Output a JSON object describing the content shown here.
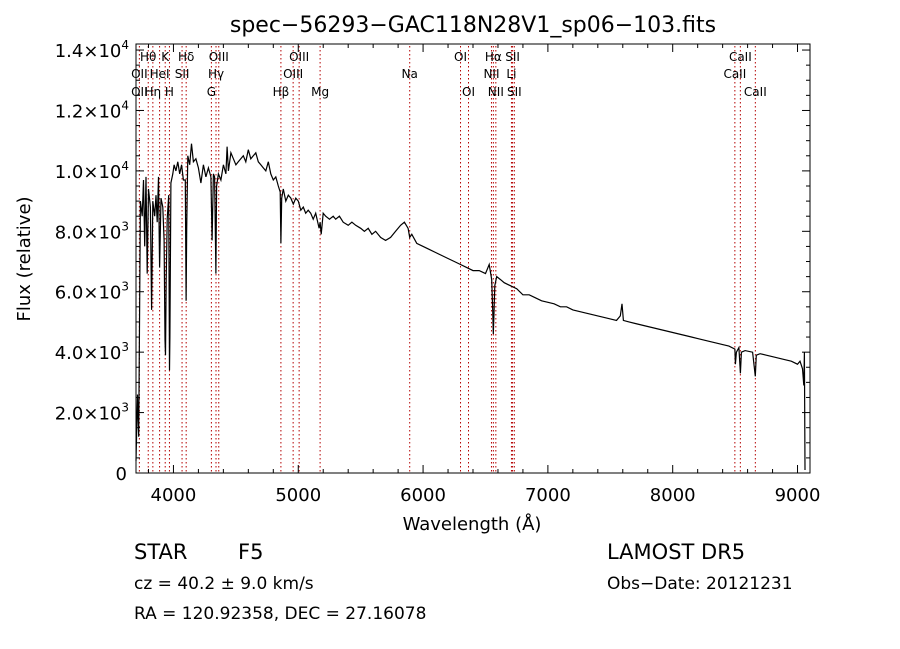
{
  "chart_data": {
    "type": "line",
    "title": "spec−56293−GAC118N28V1_sp06−103.fits",
    "xlabel": "Wavelength (Å)",
    "ylabel": "Flux (relative)",
    "xlim": [
      3700,
      9100
    ],
    "ylim": [
      0,
      14200
    ],
    "x_ticks": [
      4000,
      5000,
      6000,
      7000,
      8000,
      9000
    ],
    "y_ticks": [
      {
        "value": 0,
        "mant": "0",
        "exp": ""
      },
      {
        "value": 2000,
        "mant": "2.0×10",
        "exp": "3"
      },
      {
        "value": 4000,
        "mant": "4.0×10",
        "exp": "3"
      },
      {
        "value": 6000,
        "mant": "6.0×10",
        "exp": "3"
      },
      {
        "value": 8000,
        "mant": "8.0×10",
        "exp": "3"
      },
      {
        "value": 10000,
        "mant": "1.0×10",
        "exp": "4"
      },
      {
        "value": 12000,
        "mant": "1.2×10",
        "exp": "4"
      },
      {
        "value": 14000,
        "mant": "1.4×10",
        "exp": "4"
      }
    ],
    "spectrum_series": {
      "name": "",
      "points": [
        [
          3700,
          400
        ],
        [
          3712,
          2600
        ],
        [
          3722,
          1200
        ],
        [
          3735,
          9000
        ],
        [
          3750,
          8500
        ],
        [
          3760,
          9700
        ],
        [
          3770,
          7500
        ],
        [
          3780,
          9800
        ],
        [
          3790,
          6600
        ],
        [
          3800,
          9400
        ],
        [
          3815,
          8800
        ],
        [
          3825,
          5400
        ],
        [
          3835,
          9000
        ],
        [
          3850,
          8500
        ],
        [
          3860,
          9200
        ],
        [
          3870,
          8300
        ],
        [
          3880,
          9800
        ],
        [
          3889,
          6800
        ],
        [
          3900,
          9100
        ],
        [
          3915,
          8800
        ],
        [
          3925,
          7700
        ],
        [
          3932,
          4400
        ],
        [
          3936,
          3900
        ],
        [
          3942,
          6400
        ],
        [
          3950,
          8400
        ],
        [
          3962,
          9200
        ],
        [
          3968,
          3400
        ],
        [
          3972,
          4500
        ],
        [
          3980,
          9600
        ],
        [
          3995,
          9900
        ],
        [
          4005,
          10200
        ],
        [
          4020,
          10000
        ],
        [
          4035,
          10300
        ],
        [
          4050,
          9900
        ],
        [
          4065,
          10200
        ],
        [
          4080,
          9700
        ],
        [
          4095,
          9700
        ],
        [
          4101,
          5700
        ],
        [
          4106,
          8100
        ],
        [
          4115,
          10500
        ],
        [
          4130,
          10200
        ],
        [
          4145,
          10900
        ],
        [
          4160,
          10300
        ],
        [
          4180,
          10400
        ],
        [
          4200,
          10100
        ],
        [
          4220,
          9600
        ],
        [
          4240,
          10200
        ],
        [
          4260,
          9800
        ],
        [
          4280,
          10100
        ],
        [
          4300,
          9800
        ],
        [
          4310,
          7700
        ],
        [
          4320,
          9900
        ],
        [
          4330,
          9800
        ],
        [
          4340,
          6600
        ],
        [
          4346,
          9500
        ],
        [
          4360,
          9900
        ],
        [
          4380,
          9700
        ],
        [
          4400,
          10200
        ],
        [
          4420,
          9900
        ],
        [
          4430,
          10800
        ],
        [
          4440,
          10000
        ],
        [
          4460,
          10600
        ],
        [
          4480,
          10400
        ],
        [
          4500,
          10200
        ],
        [
          4520,
          10300
        ],
        [
          4540,
          10400
        ],
        [
          4560,
          10500
        ],
        [
          4580,
          10300
        ],
        [
          4600,
          10700
        ],
        [
          4620,
          10400
        ],
        [
          4640,
          10500
        ],
        [
          4660,
          10600
        ],
        [
          4680,
          10300
        ],
        [
          4700,
          10200
        ],
        [
          4720,
          10100
        ],
        [
          4740,
          10000
        ],
        [
          4760,
          10300
        ],
        [
          4780,
          9900
        ],
        [
          4800,
          9700
        ],
        [
          4820,
          9800
        ],
        [
          4840,
          9500
        ],
        [
          4855,
          9300
        ],
        [
          4861,
          7600
        ],
        [
          4867,
          9100
        ],
        [
          4880,
          9400
        ],
        [
          4900,
          9000
        ],
        [
          4920,
          9200
        ],
        [
          4940,
          9100
        ],
        [
          4960,
          8900
        ],
        [
          4980,
          9100
        ],
        [
          5000,
          9000
        ],
        [
          5020,
          8700
        ],
        [
          5040,
          8800
        ],
        [
          5060,
          8600
        ],
        [
          5080,
          8700
        ],
        [
          5100,
          8600
        ],
        [
          5120,
          8400
        ],
        [
          5140,
          8600
        ],
        [
          5167,
          8100
        ],
        [
          5175,
          8300
        ],
        [
          5184,
          7900
        ],
        [
          5200,
          8600
        ],
        [
          5220,
          8500
        ],
        [
          5250,
          8400
        ],
        [
          5280,
          8500
        ],
        [
          5300,
          8400
        ],
        [
          5330,
          8500
        ],
        [
          5360,
          8300
        ],
        [
          5400,
          8200
        ],
        [
          5430,
          8300
        ],
        [
          5460,
          8200
        ],
        [
          5500,
          8100
        ],
        [
          5530,
          8000
        ],
        [
          5560,
          8100
        ],
        [
          5590,
          7900
        ],
        [
          5620,
          8000
        ],
        [
          5660,
          7800
        ],
        [
          5700,
          7700
        ],
        [
          5740,
          7800
        ],
        [
          5780,
          8000
        ],
        [
          5820,
          8200
        ],
        [
          5850,
          8300
        ],
        [
          5880,
          8100
        ],
        [
          5893,
          7800
        ],
        [
          5910,
          7900
        ],
        [
          5950,
          7600
        ],
        [
          6000,
          7500
        ],
        [
          6050,
          7400
        ],
        [
          6100,
          7300
        ],
        [
          6150,
          7200
        ],
        [
          6200,
          7100
        ],
        [
          6250,
          7000
        ],
        [
          6300,
          6900
        ],
        [
          6350,
          6800
        ],
        [
          6400,
          6700
        ],
        [
          6450,
          6700
        ],
        [
          6500,
          6600
        ],
        [
          6530,
          6900
        ],
        [
          6550,
          6400
        ],
        [
          6558,
          5400
        ],
        [
          6563,
          4600
        ],
        [
          6568,
          5300
        ],
        [
          6575,
          6200
        ],
        [
          6590,
          6500
        ],
        [
          6620,
          6400
        ],
        [
          6650,
          6300
        ],
        [
          6700,
          6200
        ],
        [
          6750,
          6100
        ],
        [
          6800,
          5900
        ],
        [
          6850,
          5900
        ],
        [
          6900,
          5800
        ],
        [
          6950,
          5700
        ],
        [
          7000,
          5650
        ],
        [
          7050,
          5600
        ],
        [
          7100,
          5500
        ],
        [
          7150,
          5500
        ],
        [
          7200,
          5400
        ],
        [
          7250,
          5350
        ],
        [
          7300,
          5300
        ],
        [
          7350,
          5250
        ],
        [
          7400,
          5200
        ],
        [
          7450,
          5150
        ],
        [
          7500,
          5100
        ],
        [
          7550,
          5050
        ],
        [
          7580,
          5200
        ],
        [
          7594,
          5600
        ],
        [
          7605,
          5050
        ],
        [
          7650,
          5000
        ],
        [
          7700,
          4950
        ],
        [
          7750,
          4900
        ],
        [
          7800,
          4850
        ],
        [
          7850,
          4800
        ],
        [
          7900,
          4750
        ],
        [
          7950,
          4700
        ],
        [
          8000,
          4650
        ],
        [
          8050,
          4600
        ],
        [
          8100,
          4550
        ],
        [
          8150,
          4500
        ],
        [
          8200,
          4450
        ],
        [
          8250,
          4400
        ],
        [
          8300,
          4350
        ],
        [
          8350,
          4300
        ],
        [
          8400,
          4250
        ],
        [
          8450,
          4200
        ],
        [
          8498,
          4100
        ],
        [
          8502,
          3600
        ],
        [
          8510,
          4000
        ],
        [
          8530,
          4150
        ],
        [
          8542,
          3300
        ],
        [
          8550,
          4000
        ],
        [
          8580,
          4050
        ],
        [
          8640,
          4000
        ],
        [
          8662,
          3200
        ],
        [
          8670,
          3900
        ],
        [
          8700,
          3950
        ],
        [
          8750,
          3900
        ],
        [
          8800,
          3850
        ],
        [
          8850,
          3800
        ],
        [
          8900,
          3750
        ],
        [
          8950,
          3700
        ],
        [
          9000,
          3600
        ],
        [
          9020,
          3700
        ],
        [
          9040,
          3450
        ],
        [
          9050,
          2900
        ],
        [
          9055,
          4000
        ],
        [
          9060,
          100
        ]
      ]
    },
    "lines": [
      {
        "label": "Hθ",
        "x": 3798,
        "row": 1
      },
      {
        "label": "OII",
        "x": 3727,
        "row": 2
      },
      {
        "label": "OII",
        "x": 3727,
        "row": 3
      },
      {
        "label": "K",
        "x": 3934,
        "row": 1
      },
      {
        "label": "HeI",
        "x": 3889,
        "row": 2
      },
      {
        "label": "Hη",
        "x": 3835,
        "row": 3
      },
      {
        "label": "Hδ",
        "x": 4102,
        "row": 1
      },
      {
        "label": "SII",
        "x": 4069,
        "row": 2
      },
      {
        "label": "H",
        "x": 3968,
        "row": 3
      },
      {
        "label": "OIII",
        "x": 4363,
        "row": 1
      },
      {
        "label": "Hγ",
        "x": 4341,
        "row": 2
      },
      {
        "label": "G",
        "x": 4304,
        "row": 3
      },
      {
        "label": "OIII",
        "x": 5007,
        "row": 1
      },
      {
        "label": "OIII",
        "x": 4959,
        "row": 2
      },
      {
        "label": "Hβ",
        "x": 4861,
        "row": 3
      },
      {
        "label": "Mg",
        "x": 5175,
        "row": 3
      },
      {
        "label": "Na",
        "x": 5893,
        "row": 2
      },
      {
        "label": "OI",
        "x": 6300,
        "row": 1
      },
      {
        "label": "OI",
        "x": 6364,
        "row": 3
      },
      {
        "label": "Hα",
        "x": 6563,
        "row": 1
      },
      {
        "label": "NII",
        "x": 6548,
        "row": 2
      },
      {
        "label": "NII",
        "x": 6583,
        "row": 3
      },
      {
        "label": "SII",
        "x": 6717,
        "row": 1
      },
      {
        "label": "Li",
        "x": 6708,
        "row": 2
      },
      {
        "label": "SII",
        "x": 6731,
        "row": 3
      },
      {
        "label": "CaII",
        "x": 8542,
        "row": 1
      },
      {
        "label": "CaII",
        "x": 8498,
        "row": 2
      },
      {
        "label": "CaII",
        "x": 8662,
        "row": 3
      }
    ],
    "grid": false,
    "legend": "none"
  },
  "info": {
    "class_label": "STAR",
    "subclass": "F5",
    "survey": "LAMOST  DR5",
    "cz": "cz = 40.2 ± 9.0 km/s",
    "obs_date": "Obs−Date: 20121231",
    "coords": "RA = 120.92358, DEC =  27.16078"
  },
  "colors": {
    "spectrum": "#000000",
    "line_markers": "#b40000",
    "axes": "#000000"
  }
}
